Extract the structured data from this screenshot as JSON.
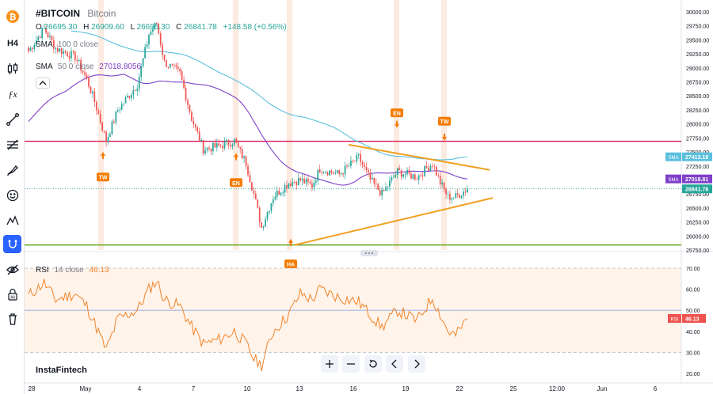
{
  "header": {
    "symbol": "#BITCOIN",
    "name": "Bitcoin",
    "ohlc": {
      "o_label": "O",
      "o": "26695.30",
      "h_label": "H",
      "h": "26909.60",
      "l_label": "L",
      "l": "26695.30",
      "c_label": "C",
      "c": "26841.78",
      "change": "+148.58 (+0.56%)"
    }
  },
  "indicators": {
    "sma1": {
      "label": "SMA",
      "params": "100 0 close",
      "value": ""
    },
    "sma2": {
      "label": "SMA",
      "params": "50 0 close",
      "value": "27018.8056"
    },
    "rsi": {
      "label": "RSI",
      "params": "14 close",
      "value": "46.13"
    }
  },
  "watermark": "InstaFintech",
  "badges": {
    "sma100": "27413.19",
    "sma50": "27018.81",
    "price": "26841.78",
    "sma_tag": "SMA",
    "rsi_tag": "RSI",
    "rsi_val": "46.13"
  },
  "colors": {
    "up": "#26a69a",
    "down": "#ef5350",
    "sma100": "#5bc0de",
    "sma50": "#7e3fc9",
    "resistance": "#d81b60",
    "support": "#66a61e",
    "triangle": "#f0a020",
    "marker": "#f57c00",
    "rsi": "#f0852b"
  },
  "chart_data": {
    "type": "candlestick",
    "price_axis": {
      "min": 25750,
      "max": 30000,
      "ticks": [
        "30000.00",
        "29750.00",
        "29500.00",
        "29250.00",
        "29000.00",
        "28750.00",
        "28500.00",
        "28250.00",
        "28000.00",
        "27750.00",
        "27500.00",
        "27250.00",
        "27000.00",
        "26750.00",
        "26500.00",
        "26250.00",
        "26000.00",
        "25750.00"
      ]
    },
    "rsi_axis": {
      "min": 20,
      "max": 70,
      "ticks": [
        "70.00",
        "60.00",
        "50.00",
        "40.00",
        "30.00",
        "20.00"
      ],
      "upper": 70,
      "middle": 50,
      "lower": 30
    },
    "time_axis": [
      "28",
      "May",
      "4",
      "7",
      "10",
      "13",
      "16",
      "19",
      "22",
      "25",
      "12:00",
      "Jun",
      "6"
    ],
    "horizontal_levels": [
      {
        "name": "resistance",
        "value": 27690
      },
      {
        "name": "support",
        "value": 25840
      }
    ],
    "markers": [
      {
        "label": "TW",
        "side": "below"
      },
      {
        "label": "EN",
        "side": "below"
      },
      {
        "label": "HA",
        "side": "below"
      },
      {
        "label": "EN",
        "side": "above"
      },
      {
        "label": "TW",
        "side": "above"
      }
    ],
    "sma100_last": 27413.19,
    "sma50_last": 27018.81,
    "last_price": 26841.78,
    "rsi_last": 46.13
  }
}
